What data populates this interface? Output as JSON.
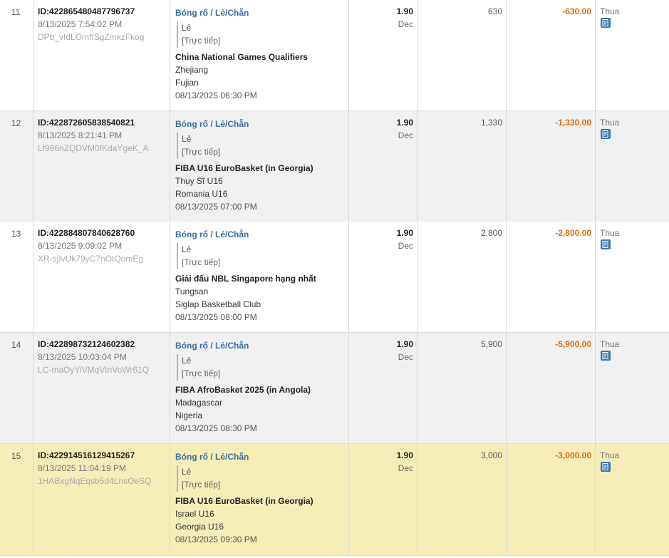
{
  "rows": [
    {
      "num": "11",
      "id": "ID:422865480487796737",
      "datetime": "8/13/2025 7:54:02 PM",
      "ref": "DPb_vfdLOmfISgZmkzFkog",
      "sport": "Bóng rổ / Lẻ/Chẵn",
      "selection": "Lẻ",
      "live": "[Trực tiếp]",
      "league": "China National Games Qualifiers",
      "team1": "Zhejiang",
      "team2": "Fujian",
      "event_date": "08/13/2025 06:30 PM",
      "odds": "1.90",
      "odds_format": "Dec",
      "stake": "630",
      "winloss": "-630.00",
      "status": "Thua"
    },
    {
      "num": "12",
      "id": "ID:422872605838540821",
      "datetime": "8/13/2025 8:21:41 PM",
      "ref": "Lf996nZQDVM0fKdaYgeK_A",
      "sport": "Bóng rổ / Lẻ/Chẵn",
      "selection": "Lẻ",
      "live": "[Trực tiếp]",
      "league": "FIBA U16 EuroBasket (in Georgia)",
      "team1": "Thụy Sĩ U16",
      "team2": "Romania U16",
      "event_date": "08/13/2025 07:00 PM",
      "odds": "1.90",
      "odds_format": "Dec",
      "stake": "1,330",
      "winloss": "-1,330.00",
      "status": "Thua"
    },
    {
      "num": "13",
      "id": "ID:422884807840628760",
      "datetime": "8/13/2025 9:09:02 PM",
      "ref": "XR-sjIvUk79yC7nOtQomEg",
      "sport": "Bóng rổ / Lẻ/Chẵn",
      "selection": "Lẻ",
      "live": "[Trực tiếp]",
      "league": "Giải đấu NBL Singapore hạng nhất",
      "team1": "Tungsan",
      "team2": "Siglap Basketball Club",
      "event_date": "08/13/2025 08:00 PM",
      "odds": "1.90",
      "odds_format": "Dec",
      "stake": "2,800",
      "winloss": "-2,800.00",
      "status": "Thua"
    },
    {
      "num": "14",
      "id": "ID:422898732124602382",
      "datetime": "8/13/2025 10:03:04 PM",
      "ref": "LC-maOyYiVMqVtnVoWr61Q",
      "sport": "Bóng rổ / Lẻ/Chẵn",
      "selection": "Lẻ",
      "live": "[Trực tiếp]",
      "league": "FIBA AfroBasket 2025 (in Angola)",
      "team1": "Madagascar",
      "team2": "Nigeria",
      "event_date": "08/13/2025 08:30 PM",
      "odds": "1.90",
      "odds_format": "Dec",
      "stake": "5,900",
      "winloss": "-5,900.00",
      "status": "Thua"
    },
    {
      "num": "15",
      "id": "ID:422914516129415267",
      "datetime": "8/13/2025 11:04:19 PM",
      "ref": "1HABxgNqEqsb5d4LnsOeSQ",
      "sport": "Bóng rổ / Lẻ/Chẵn",
      "selection": "Lẻ",
      "live": "[Trực tiếp]",
      "league": "FIBA U16 EuroBasket (in Georgia)",
      "team1": "Israel U16",
      "team2": "Georgia U16",
      "event_date": "08/13/2025 09:30 PM",
      "odds": "1.90",
      "odds_format": "Dec",
      "stake": "3,000",
      "winloss": "-3,000.00",
      "status": "Thua"
    }
  ],
  "colors": {
    "link": "#3a6ea5",
    "loss": "#e36c09",
    "highlight": "#f5edb8",
    "alt": "#f0f0f0"
  },
  "icons": {
    "status": "ticket-icon"
  }
}
